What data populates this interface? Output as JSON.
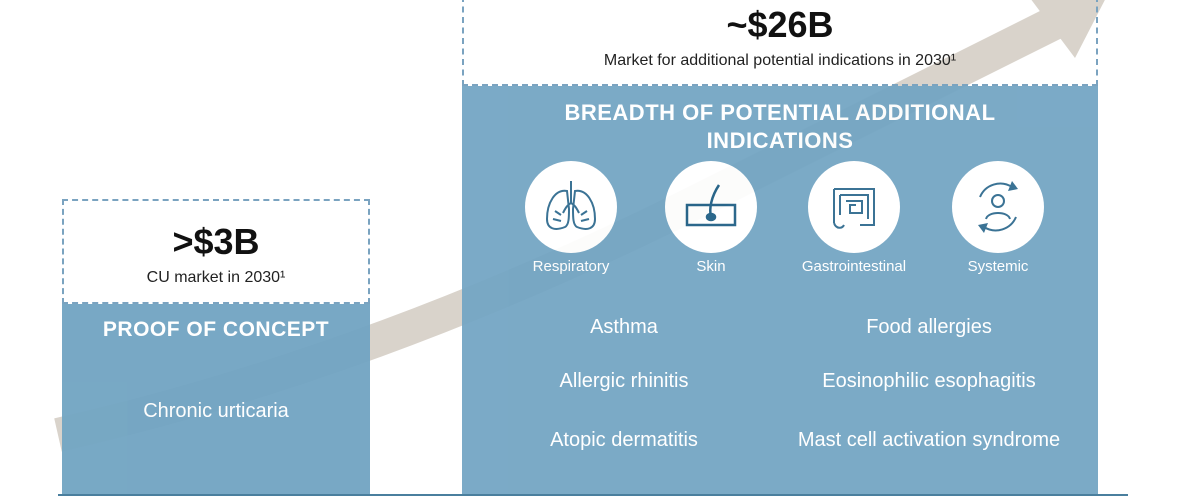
{
  "left": {
    "headline": ">$3B",
    "subline": "CU market in 2030¹",
    "panel_title": "PROOF OF CONCEPT",
    "indication": "Chronic urticaria"
  },
  "right": {
    "headline": "~$26B",
    "subline": "Market for additional potential indications in 2030¹",
    "panel_title_line1": "BREADTH OF POTENTIAL ADDITIONAL",
    "panel_title_line2": "INDICATIONS",
    "categories": [
      {
        "label": "Respiratory",
        "icon": "lungs-icon"
      },
      {
        "label": "Skin",
        "icon": "skin-hair-follicle-icon"
      },
      {
        "label": "Gastrointestinal",
        "icon": "intestine-icon"
      },
      {
        "label": "Systemic",
        "icon": "person-cycle-icon"
      }
    ],
    "indications_left": [
      "Asthma",
      "Allergic rhinitis",
      "Atopic dermatitis"
    ],
    "indications_right": [
      "Food allergies",
      "Eosinophilic esophagitis",
      "Mast cell activation syndrome"
    ]
  },
  "colors": {
    "panel_blue": "#73a5c3",
    "dashed_border": "#7aa3c0",
    "arrow": "#d9d3cb",
    "icon_stroke": "#2f6b8f"
  }
}
